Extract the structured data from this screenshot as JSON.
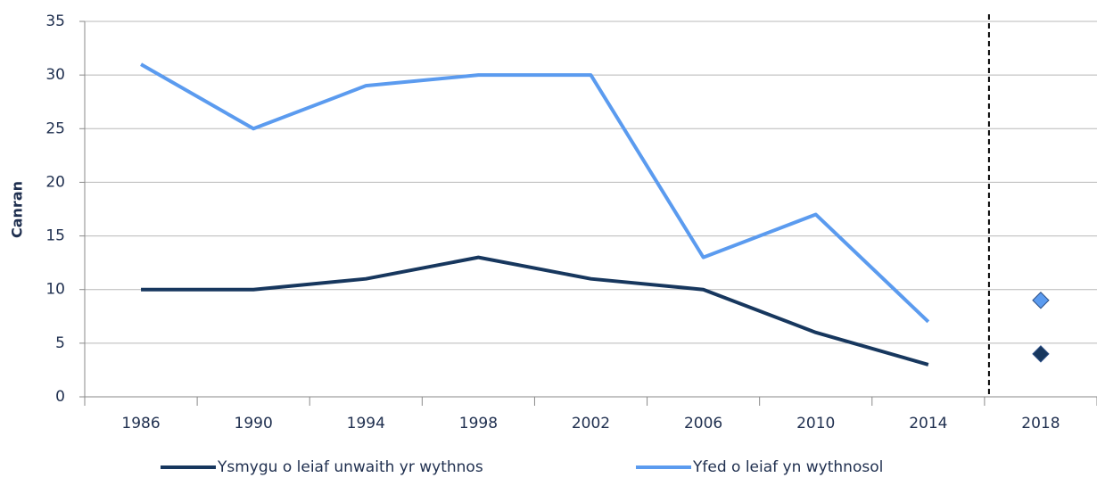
{
  "chart_data": {
    "type": "line",
    "y_label": "Canran",
    "categories": [
      "1986",
      "1990",
      "1994",
      "1998",
      "2002",
      "2006",
      "2010",
      "2014",
      "2018"
    ],
    "series": [
      {
        "name": "Ysmygu o leiaf unwaith yr wythnos",
        "color": "#17375e",
        "values": [
          10,
          10,
          11,
          13,
          11,
          10,
          6,
          3,
          4
        ]
      },
      {
        "name": "Yfed o leiaf yn wythnosol",
        "color": "#5b9bef",
        "values": [
          31,
          25,
          29,
          30,
          30,
          13,
          17,
          7,
          9
        ]
      }
    ],
    "dashed_divider_before": 8,
    "ylim": [
      0,
      35
    ],
    "yticks": [
      0,
      5,
      10,
      15,
      20,
      25,
      30,
      35
    ],
    "grid": true,
    "legend": "bottom"
  }
}
